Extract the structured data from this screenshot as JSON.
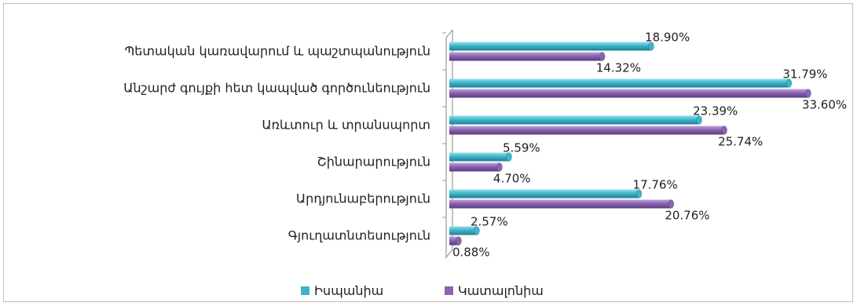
{
  "chart_data": {
    "type": "bar",
    "orientation": "horizontal",
    "title": "",
    "xlabel": "",
    "ylabel": "",
    "xlim": [
      0,
      35
    ],
    "grid": false,
    "legend_position": "bottom",
    "categories": [
      "Պետական կառավարում և պաշտպանություն",
      "Անշարժ գույքի հետ կապված գործունեություն",
      "Առևտուր և տրանսպորտ",
      "Շինարարություն",
      "Արդյունաբերություն",
      "Գյուղատնտեսություն"
    ],
    "series": [
      {
        "name": "Իսպանիա",
        "color": "#3fb4c8",
        "values": [
          18.9,
          31.79,
          23.39,
          5.59,
          17.76,
          2.57
        ],
        "labels": [
          "18.90%",
          "31.79%",
          "23.39%",
          "5.59%",
          "17.76%",
          "2.57%"
        ]
      },
      {
        "name": "Կատալոնիա",
        "color": "#8a64b0",
        "values": [
          14.32,
          33.6,
          25.74,
          4.7,
          20.76,
          0.88
        ],
        "labels": [
          "14.32%",
          "33.60%",
          "25.74%",
          "4.70%",
          "20.76%",
          "0.88%"
        ]
      }
    ]
  }
}
